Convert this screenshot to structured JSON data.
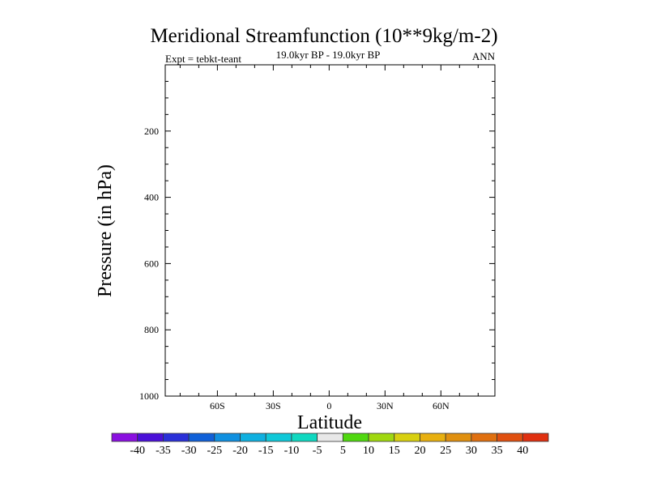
{
  "chart_data": {
    "type": "heatmap",
    "title": "Meridional Streamfunction (10**9kg/m-2)",
    "subtitle": "19.0kyr BP - 19.0kyr BP",
    "left_label": "Expt = tebkt-teant",
    "right_label": "ANN",
    "xlabel": "Latitude",
    "ylabel": "Pressure (in hPa)",
    "xlim": [
      -88,
      89
    ],
    "ylim": [
      1000,
      0
    ],
    "x_ticks": [
      {
        "v": -60,
        "label": "60S"
      },
      {
        "v": -30,
        "label": "30S"
      },
      {
        "v": 0,
        "label": "0"
      },
      {
        "v": 30,
        "label": "30N"
      },
      {
        "v": 60,
        "label": "60N"
      }
    ],
    "y_ticks": [
      {
        "v": 200,
        "label": "200"
      },
      {
        "v": 400,
        "label": "400"
      },
      {
        "v": 600,
        "label": "600"
      },
      {
        "v": 800,
        "label": "800"
      },
      {
        "v": 1000,
        "label": "1000"
      }
    ],
    "values": [],
    "colorbar": {
      "labels": [
        "-40",
        "-35",
        "-30",
        "-25",
        "-20",
        "-15",
        "-10",
        "-5",
        "5",
        "10",
        "15",
        "20",
        "25",
        "30",
        "35",
        "40"
      ],
      "colors": [
        "#8a10e0",
        "#4a10d8",
        "#2a30d8",
        "#1060d8",
        "#1090e0",
        "#10b0e0",
        "#10c8d8",
        "#10d8c0",
        "#e8e8e8",
        "#50d810",
        "#a0d810",
        "#d8d010",
        "#e8b010",
        "#e09010",
        "#e07010",
        "#e05010",
        "#e03010"
      ]
    }
  }
}
